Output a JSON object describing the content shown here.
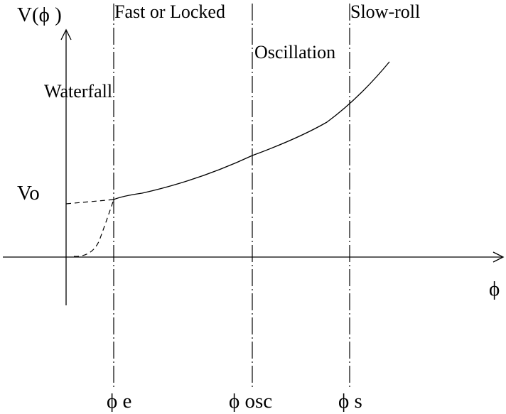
{
  "axes": {
    "y_label": "V(ϕ )",
    "x_label": "ϕ"
  },
  "regions": {
    "fast_locked": "Fast or Locked",
    "slow_roll": "Slow-roll",
    "oscillation": "Oscillation",
    "waterfall": "Waterfall"
  },
  "markers": {
    "v0": "Vo",
    "phi_e": "ϕ e",
    "phi_osc": "ϕ osc",
    "phi_s": "ϕ s"
  }
}
